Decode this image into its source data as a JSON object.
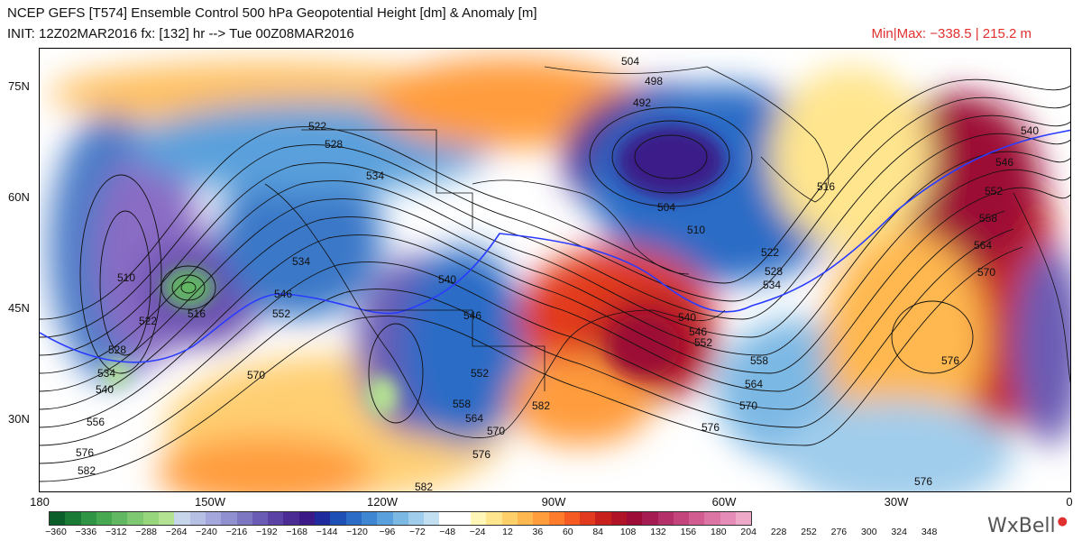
{
  "header": {
    "title": "NCEP GEFS [T574] Ensemble Control 500 hPa Geopotential Height [dm] & Anomaly [m]",
    "init_line": "INIT: 12Z02MAR2016 fx: [132] hr --> Tue 00Z08MAR2016",
    "minmax": "Min|Max: −338.5 | 215.2 m"
  },
  "axes": {
    "lat_labels": [
      "75N",
      "60N",
      "45N",
      "30N"
    ],
    "lon_labels": [
      "180",
      "150W",
      "120W",
      "90W",
      "60W",
      "30W",
      "0"
    ]
  },
  "contour_labels": [
    "504",
    "498",
    "492",
    "522",
    "528",
    "534",
    "504",
    "510",
    "516",
    "540",
    "546",
    "552",
    "558",
    "564",
    "570",
    "576",
    "510",
    "516",
    "522",
    "528",
    "534",
    "540",
    "556",
    "576",
    "582",
    "534",
    "546",
    "552",
    "570",
    "540",
    "546",
    "552",
    "558",
    "564",
    "570",
    "576",
    "582",
    "582",
    "522",
    "528",
    "534",
    "540",
    "546",
    "552",
    "558",
    "564",
    "570",
    "576",
    "576"
  ],
  "colorbar": {
    "labels": [
      "−360",
      "−336",
      "−312",
      "−288",
      "−264",
      "−240",
      "−216",
      "−192",
      "−168",
      "−144",
      "−120",
      "−96",
      "−72",
      "−48",
      "−24",
      "12",
      "36",
      "60",
      "84",
      "108",
      "132",
      "156",
      "180",
      "204",
      "228",
      "252",
      "276",
      "300",
      "324",
      "348"
    ],
    "colors": [
      "#0b5d2a",
      "#1a7a36",
      "#2f9444",
      "#48a852",
      "#62b862",
      "#7dc870",
      "#98d67e",
      "#b3e292",
      "#c8d6ec",
      "#b6c0e4",
      "#a3a7dc",
      "#9090d0",
      "#7d77c2",
      "#6a5cb4",
      "#5a43a4",
      "#4a2c94",
      "#3b1a88",
      "#1f2a9c",
      "#1e4fb4",
      "#2c6cc6",
      "#3f86d2",
      "#5aa0dc",
      "#7cb8e4",
      "#a0cdec",
      "#c2e0f2",
      "#ffffff",
      "#ffffff",
      "#fff6b8",
      "#ffe58e",
      "#ffd06a",
      "#ffb850",
      "#ff9c3c",
      "#ff7c2c",
      "#f45a22",
      "#e23a1e",
      "#c8201c",
      "#b01226",
      "#9c0c36",
      "#a41c52",
      "#b43068",
      "#c4447c",
      "#d05c90",
      "#dc74a4",
      "#e68cb8",
      "#eea8c8"
    ]
  },
  "logo_text": "WxBell"
}
